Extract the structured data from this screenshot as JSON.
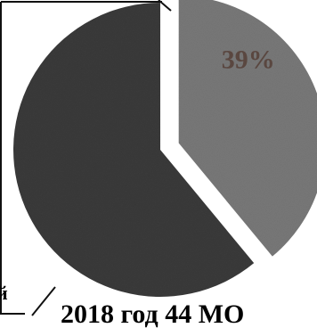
{
  "chart_data": {
    "type": "pie",
    "caption": "2018 год 44 МО",
    "left_edge_fragment": "й",
    "slices": [
      {
        "value": 39,
        "label": "39%",
        "color": "#7a7a7a",
        "label_color": "#5a4740",
        "exploded": true
      },
      {
        "value": 61,
        "label": "",
        "color": "#3b3b3b",
        "label_color": "#000000",
        "exploded": false
      }
    ],
    "start_angle_deg": 0,
    "legend": "none",
    "grid": false
  }
}
